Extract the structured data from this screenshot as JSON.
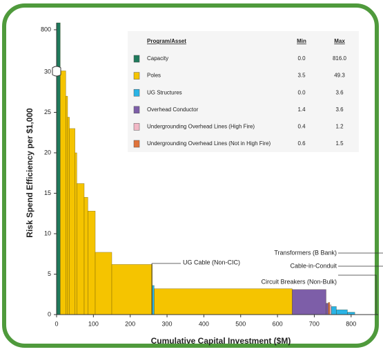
{
  "chart_data": {
    "type": "step-bar",
    "x_label": "Cumulative Capital Investment ($M)",
    "y_label": "Risk Spend Efficiency per $1,000",
    "xlim": [
      0,
      860
    ],
    "xticks": [
      0,
      100,
      200,
      300,
      400,
      500,
      600,
      700,
      800
    ],
    "ylim": [
      0,
      816
    ],
    "ybreak": [
      30,
      800
    ],
    "yticks": [
      0,
      5,
      10,
      15,
      20,
      25,
      30,
      800
    ],
    "legend_headers": [
      "Program/Asset",
      "Min",
      "Max"
    ],
    "series": [
      {
        "name": "Capacity",
        "color": "#1f7a5c",
        "min": "0.0",
        "max": "816.0",
        "xstart": [
          0
        ],
        "xend": [
          10
        ],
        "values": [
          816
        ]
      },
      {
        "name": "Poles",
        "color": "#f5c400",
        "min": "3.5",
        "max": "49.3",
        "xstart": [
          10,
          25,
          30,
          35,
          50,
          55,
          75,
          85,
          105,
          150,
          265
        ],
        "xend": [
          25,
          30,
          35,
          50,
          55,
          75,
          85,
          105,
          150,
          260,
          640
        ],
        "values": [
          49.3,
          27,
          24.4,
          23,
          20,
          16.2,
          14.5,
          12.8,
          7.7,
          6.2,
          3.2
        ]
      },
      {
        "name": "UG Structures",
        "color": "#2ab4e6",
        "min": "0.0",
        "max": "3.6",
        "xstart": [
          260,
          746,
          760,
          790
        ],
        "xend": [
          265,
          760,
          790,
          810
        ],
        "values": [
          3.6,
          1.0,
          0.6,
          0.3
        ]
      },
      {
        "name": "Overhead Conductor",
        "color": "#7d5ea8",
        "min": "1.4",
        "max": "3.6",
        "xstart": [
          640,
          732
        ],
        "xend": [
          732,
          738
        ],
        "values": [
          3.1,
          1.4
        ]
      },
      {
        "name": "Undergrounding Overhead Lines (High Fire)",
        "color": "#f2b8c6",
        "min": "0.4",
        "max": "1.2",
        "xstart": [
          742
        ],
        "xend": [
          746
        ],
        "values": [
          1.2
        ]
      },
      {
        "name": "Undergrounding Overhead Lines (Not in High Fire)",
        "color": "#e0733a",
        "min": "0.6",
        "max": "1.5",
        "xstart": [
          738
        ],
        "xend": [
          742
        ],
        "values": [
          1.5
        ]
      }
    ],
    "annotations": [
      "UG Cable (Non-CIC)",
      "Transformers (B Bank)",
      "Cable-in-Conduit",
      "Circuit Breakers (Non-Bulk)"
    ]
  }
}
